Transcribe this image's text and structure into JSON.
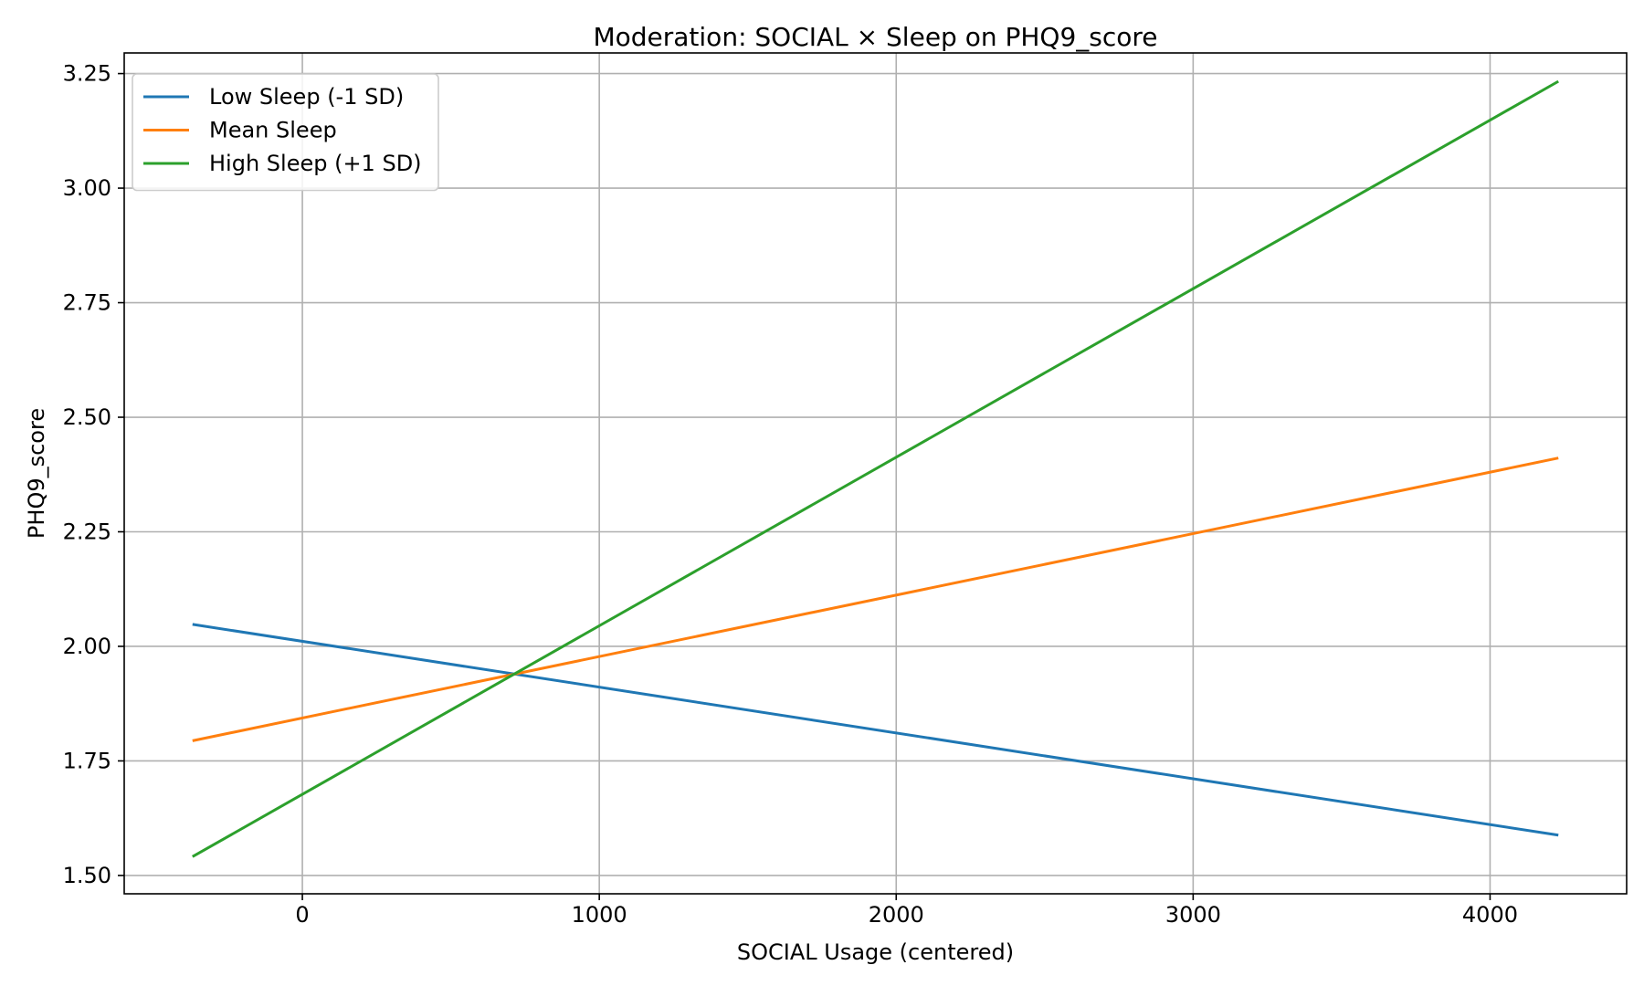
{
  "chart_data": {
    "type": "line",
    "title": "Moderation: SOCIAL × Sleep on PHQ9_score",
    "xlabel": "SOCIAL Usage (centered)",
    "ylabel": "PHQ9_score",
    "xlim": [
      -600,
      4460
    ],
    "ylim": [
      1.46,
      3.295
    ],
    "xticks": [
      0,
      1000,
      2000,
      3000,
      4000
    ],
    "xtick_labels": [
      "0",
      "1000",
      "2000",
      "3000",
      "4000"
    ],
    "yticks": [
      1.5,
      1.75,
      2.0,
      2.25,
      2.5,
      2.75,
      3.0,
      3.25
    ],
    "ytick_labels": [
      "1.50",
      "1.75",
      "2.00",
      "2.25",
      "2.50",
      "2.75",
      "3.00",
      "3.25"
    ],
    "grid": true,
    "legend_position": "top-left",
    "series": [
      {
        "name": "Low Sleep (-1 SD)",
        "color": "#1f77b4",
        "x": [
          -370,
          4230
        ],
        "y": [
          2.048,
          1.588
        ]
      },
      {
        "name": "Mean Sleep",
        "color": "#ff7f0e",
        "x": [
          -370,
          4230
        ],
        "y": [
          1.794,
          2.411
        ]
      },
      {
        "name": "High Sleep (+1 SD)",
        "color": "#2ca02c",
        "x": [
          -370,
          4230
        ],
        "y": [
          1.541,
          3.233
        ]
      }
    ]
  }
}
